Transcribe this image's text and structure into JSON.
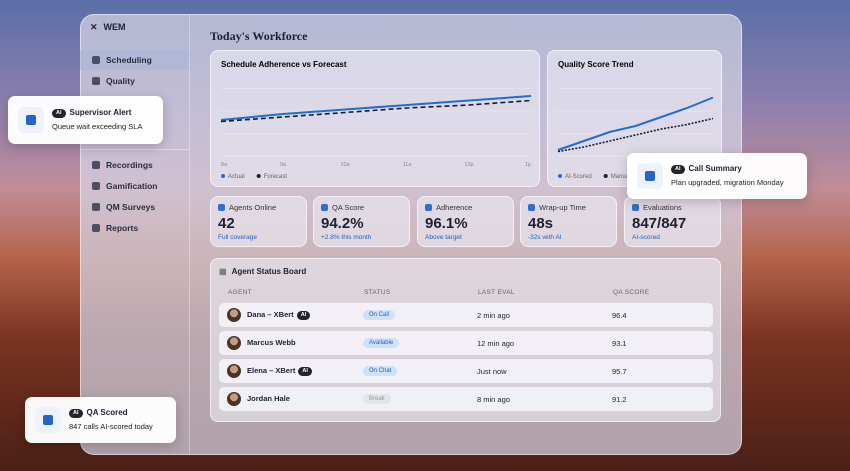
{
  "sidebar": {
    "brand": "WEM",
    "nav": [
      "Scheduling",
      "Quality",
      "Recordings",
      "Gamification",
      "QM Surveys",
      "Reports"
    ]
  },
  "title": "Today's Workforce",
  "chart_data": [
    {
      "type": "line",
      "title": "Schedule Adherence vs Forecast",
      "categories": [
        "8a",
        "9a",
        "10a",
        "11a",
        "12p",
        "1p"
      ],
      "ylim": [
        70,
        100
      ],
      "series": [
        {
          "name": "Actual",
          "color": "#1f6fd1",
          "values": [
            82,
            84,
            85.5,
            87,
            88.5,
            90
          ]
        },
        {
          "name": "Forecast",
          "color": "#1b1d2b",
          "values": [
            81.5,
            83,
            84.5,
            86,
            87,
            88.5
          ]
        }
      ]
    },
    {
      "type": "line",
      "title": "Quality Score Trend",
      "categories": [
        null,
        null,
        null,
        null,
        null,
        null,
        null
      ],
      "ylim": [
        70,
        100
      ],
      "series": [
        {
          "name": "AI-Scored",
          "color": "#1f6fd1",
          "values": [
            72,
            75,
            78,
            80,
            83,
            86,
            89.5
          ]
        },
        {
          "name": "Manual",
          "color": "#1b1d2b",
          "values": [
            71.5,
            73,
            75,
            77,
            79,
            80.5,
            82.5
          ]
        }
      ]
    }
  ],
  "kpis": [
    {
      "label": "Agents Online",
      "value": "42",
      "note": "Full coverage"
    },
    {
      "label": "QA Score",
      "value": "94.2%",
      "note": "+2.8% this month"
    },
    {
      "label": "Adherence",
      "value": "96.1%",
      "note": "Above target"
    },
    {
      "label": "Wrap-up Time",
      "value": "48s",
      "note": "-32s with AI"
    },
    {
      "label": "Evaluations",
      "value": "847/847",
      "note": "AI-scored"
    }
  ],
  "board": {
    "title": "Agent Status Board",
    "columns": [
      "AGENT",
      "STATUS",
      "LAST EVAL",
      "QA SCORE"
    ],
    "rows": [
      {
        "agent": "Dana – XBert",
        "badge": "AI",
        "status": "On Call",
        "last_eval": "2 min ago",
        "score": 96.4
      },
      {
        "agent": "Marcus Webb",
        "status": "Available",
        "last_eval": "12 min ago",
        "score": 93.1
      },
      {
        "agent": "Elena – XBert",
        "badge": "AI",
        "status": "On Chat",
        "last_eval": "Just now",
        "score": 95.7
      },
      {
        "agent": "Jordan Hale",
        "status": "Break",
        "last_eval": "8 min ago",
        "score": 91.2
      }
    ]
  },
  "alerts": [
    {
      "badge": "AI",
      "title": "Supervisor Alert",
      "text": "Queue wait exceeding SLA"
    },
    {
      "badge": "AI",
      "title": "Call Summary",
      "text": "Plan upgraded, migration Monday"
    },
    {
      "badge": "AI",
      "title": "QA Scored",
      "text": "847 calls AI-scored today"
    }
  ]
}
